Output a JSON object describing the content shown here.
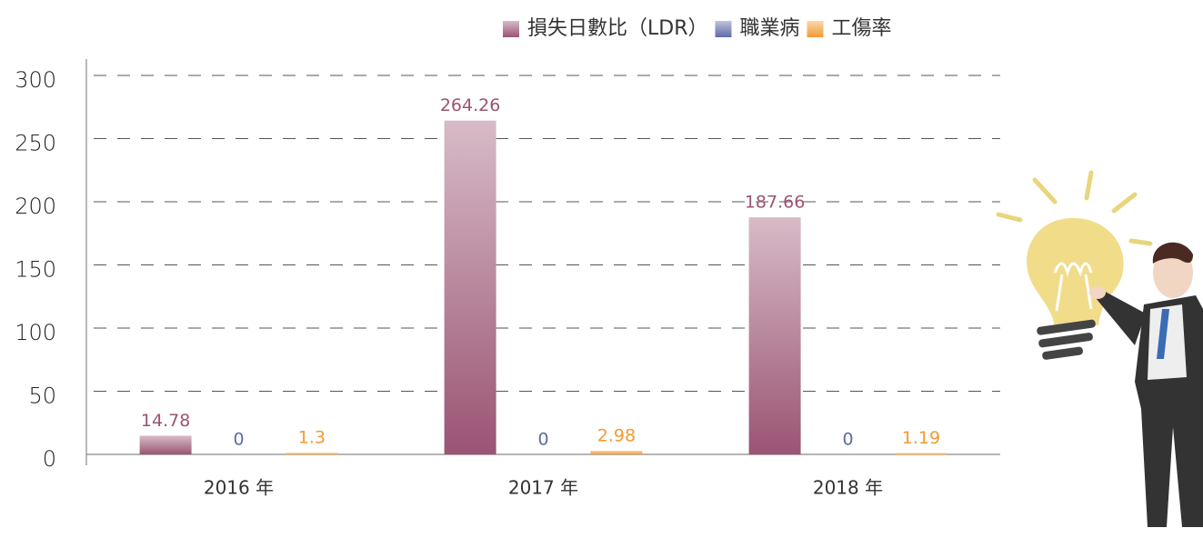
{
  "chart_data": {
    "type": "bar",
    "categories": [
      "2016 年",
      "2017 年",
      "2018 年"
    ],
    "series": [
      {
        "name": "損失日數比（LDR）",
        "color": "#9a5473",
        "values": [
          14.78,
          264.26,
          187.66
        ]
      },
      {
        "name": "職業病",
        "color": "#5f6aa8",
        "values": [
          0,
          0,
          0
        ]
      },
      {
        "name": "工傷率",
        "color": "#f39a32",
        "values": [
          1.3,
          2.98,
          1.19
        ]
      }
    ],
    "ylim": [
      0,
      300
    ],
    "yticks": [
      0,
      50,
      100,
      150,
      200,
      250,
      300
    ],
    "grid": true,
    "legend": "top"
  }
}
